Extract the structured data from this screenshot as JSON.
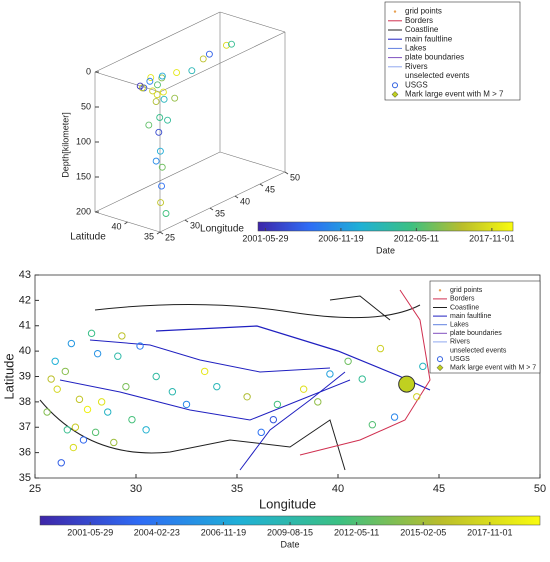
{
  "chart_data": [
    {
      "type": "scatter3d",
      "xlabel": "Longitude",
      "ylabel": "Latitude",
      "zlabel": "Depth[kilometer]",
      "xlim": [
        25,
        50
      ],
      "ylim": [
        35,
        45
      ],
      "zlim": [
        0,
        200
      ],
      "xticks": [
        25,
        30,
        35,
        40,
        45,
        50
      ],
      "yticks": [
        35,
        40
      ],
      "zticks": [
        0,
        50,
        100,
        150,
        200
      ],
      "x": [
        26.2,
        26.8,
        27.3,
        27.9,
        28.4,
        29.0,
        29.6,
        30.3,
        31.2,
        26.5,
        27.1,
        27.6,
        28.2,
        28.8,
        26.9,
        27.4,
        27.0,
        27.2,
        26.7,
        27.5,
        33.0,
        35.4,
        38.2,
        40.6,
        43.1,
        44.5,
        30.8,
        28.6,
        27.8,
        26.4
      ],
      "y": [
        38.4,
        39.1,
        37.2,
        36.6,
        38.0,
        39.5,
        40.1,
        38.8,
        39.4,
        36.2,
        36.8,
        37.6,
        36.3,
        37.4,
        36.4,
        36.5,
        36.3,
        36.6,
        36.9,
        36.0,
        38.6,
        38.1,
        38.5,
        39.4,
        38.7,
        39.0,
        37.2,
        38.9,
        40.2,
        37.8
      ],
      "z": [
        8,
        12,
        18,
        25,
        10,
        6,
        15,
        9,
        11,
        45,
        70,
        30,
        55,
        20,
        95,
        120,
        145,
        170,
        110,
        185,
        10,
        14,
        8,
        12,
        6,
        10,
        35,
        22,
        16,
        60
      ],
      "dates": [
        "2003-04-11",
        "2016-07-20",
        "2017-02-03",
        "2009-05-14",
        "2012-10-02",
        "2018-01-15",
        "2005-06-30",
        "2014-03-22",
        "2007-11-09",
        "2011-08-01",
        "2002-09-19",
        "2015-05-06",
        "2010-12-12",
        "2017-09-28",
        "2008-02-17",
        "2013-06-25",
        "2004-10-08",
        "2016-01-30",
        "2006-04-05",
        "2012-02-14",
        "2018-03-01",
        "2009-09-09",
        "2015-11-11",
        "2003-12-24",
        "2017-06-18",
        "2011-03-27",
        "2014-08-08",
        "2016-11-02",
        "2001-07-07",
        "2013-01-19"
      ],
      "colorbar_label": "Date",
      "clim": [
        "2000-11-13",
        "2019-05-15"
      ],
      "cticks": [
        "2001-05-29",
        "2006-11-19",
        "2012-05-11",
        "2017-11-01"
      ],
      "colormap": [
        "#3e26a8",
        "#2e6cf5",
        "#1fb0d6",
        "#3cc082",
        "#b9bd2c",
        "#f9fb0e"
      ],
      "legend": [
        {
          "label": "grid points",
          "color": "#e8a050",
          "style": "dot"
        },
        {
          "label": "Borders",
          "color": "#d03050",
          "style": "line"
        },
        {
          "label": "Coastline",
          "color": "#202020",
          "style": "line"
        },
        {
          "label": "main faultline",
          "color": "#2020c0",
          "style": "line"
        },
        {
          "label": "Lakes",
          "color": "#6080e0",
          "style": "line"
        },
        {
          "label": "plate boundaries",
          "color": "#8050c0",
          "style": "line"
        },
        {
          "label": "Rivers",
          "color": "#90a8f0",
          "style": "line"
        },
        {
          "label": "unselected events",
          "color": "#c0c0c0",
          "style": "none"
        },
        {
          "label": "USGS",
          "color": "#3060e0",
          "style": "circle"
        },
        {
          "label": "Mark large event with M > 7",
          "color": "#c0d020",
          "style": "star"
        }
      ]
    },
    {
      "type": "scatter",
      "xlabel": "Longitude",
      "ylabel": "Latitude",
      "xlim": [
        25,
        50
      ],
      "ylim": [
        35,
        43
      ],
      "xticks": [
        25,
        30,
        35,
        40,
        45,
        50
      ],
      "yticks": [
        35,
        36,
        37,
        38,
        39,
        40,
        41,
        42,
        43
      ],
      "x": [
        26.1,
        26.5,
        27.0,
        27.4,
        28.0,
        28.3,
        29.1,
        26.8,
        27.8,
        26.3,
        25.8,
        26.9,
        28.6,
        29.5,
        30.2,
        31.0,
        27.2,
        26.0,
        28.9,
        29.8,
        32.5,
        34.0,
        35.5,
        36.2,
        37.0,
        38.3,
        39.6,
        40.5,
        41.2,
        42.1,
        43.3,
        43.9,
        44.2,
        42.8,
        41.7,
        39.0,
        36.8,
        30.5,
        27.6,
        26.6,
        28.1,
        29.3,
        25.6,
        31.8,
        33.4
      ],
      "y": [
        38.5,
        39.2,
        37.0,
        36.5,
        36.8,
        38.0,
        39.8,
        40.3,
        40.7,
        35.6,
        38.9,
        36.2,
        37.6,
        38.6,
        40.2,
        39.0,
        38.1,
        39.6,
        36.4,
        37.3,
        37.9,
        38.6,
        38.2,
        36.8,
        37.9,
        38.5,
        39.1,
        39.6,
        38.9,
        40.1,
        38.7,
        38.2,
        39.4,
        37.4,
        37.1,
        38.0,
        37.3,
        36.9,
        37.7,
        36.9,
        39.9,
        40.6,
        37.6,
        38.4,
        39.2
      ],
      "dates": [
        "2017-06-12",
        "2014-03-02",
        "2016-09-21",
        "2003-02-11",
        "2012-07-15",
        "2018-04-04",
        "2009-10-30",
        "2006-01-25",
        "2011-05-18",
        "2002-08-09",
        "2015-12-01",
        "2017-10-17",
        "2008-06-06",
        "2013-09-13",
        "2004-04-22",
        "2010-02-28",
        "2016-05-05",
        "2007-07-27",
        "2014-11-19",
        "2012-01-08",
        "2005-03-16",
        "2009-01-10",
        "2015-07-03",
        "2003-10-26",
        "2011-11-30",
        "2018-02-20",
        "2006-08-14",
        "2013-04-29",
        "2010-10-02",
        "2016-12-24",
        "2019-01-01",
        "2017-03-15",
        "2008-09-09",
        "2004-12-12",
        "2012-05-20",
        "2014-06-06",
        "2002-03-03",
        "2007-11-11",
        "2019-03-03",
        "2011-02-02",
        "2005-09-29",
        "2016-02-14",
        "2013-12-31",
        "2009-06-21",
        "2018-08-08"
      ],
      "large_events": {
        "x": [
          43.4
        ],
        "y": [
          38.7
        ]
      },
      "colorbar_label": "Date",
      "clim": [
        "1999-05-06",
        "2019-11-24"
      ],
      "cticks": [
        "2001-05-29",
        "2004-02-23",
        "2006-11-19",
        "2009-08-15",
        "2012-05-11",
        "2015-02-05",
        "2017-11-01"
      ],
      "colormap": [
        "#3e26a8",
        "#2e6cf5",
        "#1fb0d6",
        "#3cc082",
        "#b9bd2c",
        "#f9fb0e"
      ],
      "legend": [
        {
          "label": "grid points",
          "color": "#e8a050",
          "style": "dot"
        },
        {
          "label": "Borders",
          "color": "#d03050",
          "style": "line"
        },
        {
          "label": "Coastline",
          "color": "#202020",
          "style": "line"
        },
        {
          "label": "main faultline",
          "color": "#2020c0",
          "style": "line"
        },
        {
          "label": "Lakes",
          "color": "#6080e0",
          "style": "line"
        },
        {
          "label": "plate boundaries",
          "color": "#8050c0",
          "style": "line"
        },
        {
          "label": "Rivers",
          "color": "#90a8f0",
          "style": "line"
        },
        {
          "label": "unselected events",
          "color": "#c0c0c0",
          "style": "none"
        },
        {
          "label": "USGS",
          "color": "#3060e0",
          "style": "circle"
        },
        {
          "label": "Mark large event with M > 7",
          "color": "#c0d020",
          "style": "star"
        }
      ]
    }
  ]
}
